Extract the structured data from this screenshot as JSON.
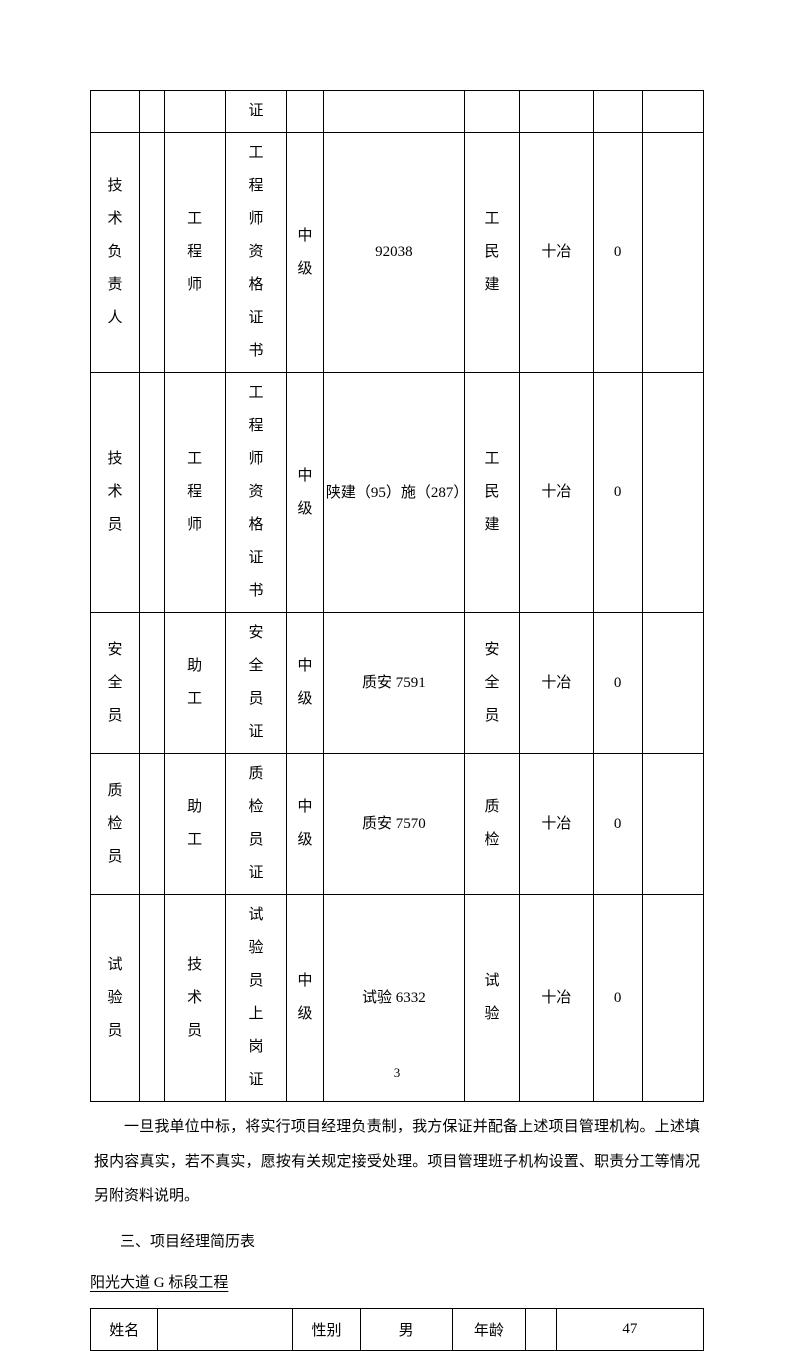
{
  "mainTable": {
    "columnWidths": [
      "8%",
      "4%",
      "10%",
      "10%",
      "6%",
      "23%",
      "9%",
      "12%",
      "8%",
      "10%"
    ],
    "rows": [
      {
        "cells": [
          "",
          "",
          "",
          "证",
          "",
          "",
          "",
          "",
          "",
          ""
        ],
        "heights": 42
      },
      {
        "cells": [
          "技术负责人",
          "",
          "工程师",
          "工程师资格证书",
          "中级",
          "92038",
          "工民建",
          "十冶",
          "0",
          ""
        ],
        "heights": 150
      },
      {
        "cells": [
          "技 术员",
          "",
          "工程师",
          "工程师资格证书",
          "中级",
          "陕建（95）施（287）",
          "工民建",
          "十冶",
          "0",
          ""
        ],
        "heights": 150
      },
      {
        "cells": [
          "安全员",
          "",
          "助工",
          "安全员证",
          "中级",
          "质安 7591",
          "安全员",
          "十冶",
          "0",
          ""
        ],
        "heights": 80
      },
      {
        "cells": [
          "质检员",
          "",
          "助工",
          "质检员证",
          "中级",
          "质安 7570",
          "质检",
          "十冶",
          "0",
          ""
        ],
        "heights": 80
      },
      {
        "cells": [
          "试验员",
          "",
          "技术员",
          "试验员上岗证",
          "中级",
          "试验 6332",
          "试验",
          "十冶",
          "0",
          ""
        ],
        "heights": 110
      }
    ]
  },
  "paragraph": "一旦我单位中标，将实行项目经理负责制，我方保证并配备上述项目管理机构。上述填报内容真实，若不真实，愿按有关规定接受处理。项目管理班子机构设置、职责分工等情况另附资料说明。",
  "sectionTitle": "三、项目经理简历表",
  "subtitle": "阳光大道 G 标段工程",
  "infoTable": {
    "columnWidths": [
      "11%",
      "22%",
      "11%",
      "15%",
      "12%",
      "5%",
      "24%"
    ],
    "row": {
      "nameLabel": "姓名",
      "nameValue": "",
      "genderLabel": "性别",
      "genderValue": "男",
      "ageLabel": "年龄",
      "ageBlank": "",
      "ageValue": "47"
    }
  },
  "pageNumber": "3"
}
